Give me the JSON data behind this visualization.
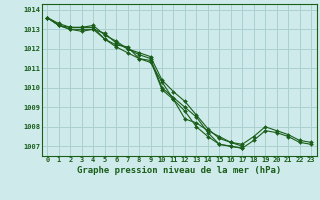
{
  "title": "Graphe pression niveau de la mer (hPa)",
  "background_color": "#ceeaea",
  "grid_color": "#aad0d0",
  "line_color": "#1a5e1a",
  "xlim": [
    -0.5,
    23.5
  ],
  "ylim": [
    1006.5,
    1014.3
  ],
  "yticks": [
    1007,
    1008,
    1009,
    1010,
    1011,
    1012,
    1013,
    1014
  ],
  "xticks": [
    0,
    1,
    2,
    3,
    4,
    5,
    6,
    7,
    8,
    9,
    10,
    11,
    12,
    13,
    14,
    15,
    16,
    17,
    18,
    19,
    20,
    21,
    22,
    23
  ],
  "series": [
    [
      1013.6,
      1013.2,
      1013.0,
      1013.0,
      1013.0,
      1012.8,
      1012.3,
      1012.0,
      1011.7,
      1011.5,
      1010.0,
      1009.5,
      1009.0,
      1008.5,
      1007.7,
      1007.1,
      1007.0,
      1006.9,
      1007.3,
      1007.8,
      1007.7,
      1007.5,
      1007.2,
      1007.1
    ],
    [
      1013.6,
      1013.3,
      1013.1,
      1013.1,
      1013.1,
      1012.5,
      1012.2,
      1012.1,
      1011.5,
      1011.3,
      1010.3,
      1009.4,
      1008.4,
      1008.2,
      1007.8,
      1007.5,
      1007.2,
      1007.0,
      null,
      null,
      null,
      null,
      null,
      null
    ],
    [
      1013.6,
      1013.2,
      1013.0,
      1012.9,
      1013.0,
      1012.5,
      1012.1,
      1011.8,
      1011.5,
      1011.4,
      1009.9,
      1009.4,
      1008.8,
      1008.0,
      1007.5,
      1007.1,
      1007.0,
      1006.9,
      null,
      null,
      null,
      null,
      null,
      null
    ],
    [
      1013.6,
      1013.2,
      1013.1,
      1013.1,
      1013.2,
      1012.7,
      1012.4,
      1012.0,
      1011.8,
      1011.6,
      1010.4,
      1009.8,
      1009.3,
      1008.6,
      1007.9,
      1007.4,
      1007.2,
      1007.1,
      1007.5,
      1008.0,
      1007.8,
      1007.6,
      1007.3,
      1007.2
    ]
  ],
  "tick_fontsize": 5.0,
  "label_fontsize": 6.5
}
